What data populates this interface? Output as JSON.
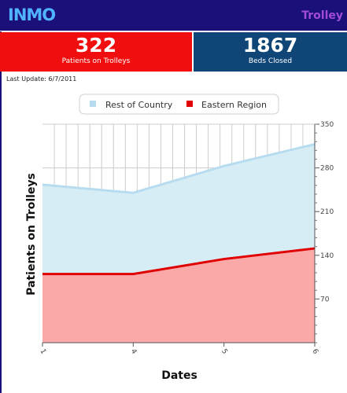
{
  "header": {
    "logo": "INMO",
    "title": "Trolley"
  },
  "stats": [
    {
      "value": "322",
      "label": "Patients on Trolleys"
    },
    {
      "value": "1867",
      "label": "Beds Closed"
    }
  ],
  "last_update": "Last Update: 6/7/2011",
  "colors": {
    "header": "#1b0f7a",
    "red_panel": "#f00e0e",
    "blue_panel": "#0f4677",
    "rest_fill": "#d7edf5",
    "rest_line": "#b7dcef",
    "eastern_fill": "#fba8a8",
    "eastern_line": "#e00000"
  },
  "chart_data": {
    "type": "area",
    "x": [
      "1",
      "4",
      "5",
      "6"
    ],
    "series": [
      {
        "name": "Rest of Country",
        "values": [
          253,
          240,
          283,
          318
        ]
      },
      {
        "name": "Eastern Region",
        "values": [
          110,
          110,
          134,
          151
        ]
      }
    ],
    "xlabel": "Dates",
    "ylabel": "Patients on Trolleys",
    "ylim": [
      0,
      350
    ],
    "yticks": [
      70,
      140,
      210,
      280,
      350
    ],
    "grid": true,
    "legend": "top"
  }
}
